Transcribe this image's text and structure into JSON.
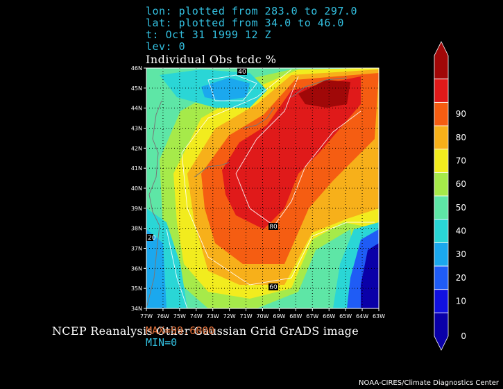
{
  "header": {
    "lon_line": "lon: plotted from 283.0 to 297.0",
    "lat_line": "lat: plotted from 34.0 to 46.0",
    "time_line": "t: Oct 31 1999 12 Z",
    "lev_line": "lev: 0",
    "title": "Individual Obs tcdc %"
  },
  "map": {
    "lon_ticks": [
      "77W",
      "76W",
      "75W",
      "74W",
      "73W",
      "72W",
      "71W",
      "70W",
      "69W",
      "68W",
      "67W",
      "66W",
      "65W",
      "64W",
      "63W"
    ],
    "lat_ticks": [
      "34N",
      "35N",
      "36N",
      "37N",
      "38N",
      "39N",
      "40N",
      "41N",
      "42N",
      "43N",
      "44N",
      "45N",
      "46N"
    ],
    "contour_labels": [
      "40",
      "80",
      "60",
      "20"
    ],
    "grid": true
  },
  "colorbar": {
    "labels": [
      "0",
      "10",
      "20",
      "30",
      "40",
      "50",
      "60",
      "70",
      "80",
      "90"
    ],
    "colors": [
      "#0a00a8",
      "#1111e0",
      "#1f5cf5",
      "#1ba8ee",
      "#2ad6d6",
      "#5ee6a6",
      "#a6ea4a",
      "#f2ec1e",
      "#f7b01a",
      "#f55d12",
      "#e01a1a",
      "#a00808"
    ]
  },
  "footer": {
    "caption": "NCEP Reanalysis Other Gaussian Grid GrADS image",
    "max": "MAX=99.6000",
    "min": "MIN=0",
    "credit": "NOAA-CIRES/Climate Diagnostics Center"
  }
}
